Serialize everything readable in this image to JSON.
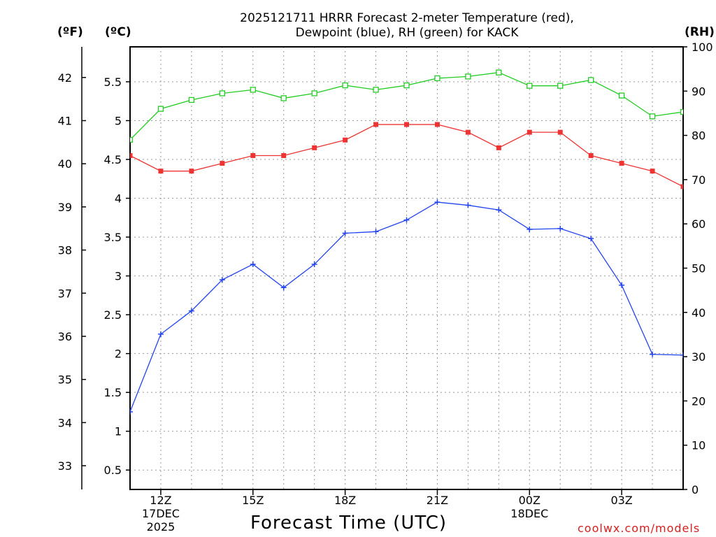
{
  "chart_data": {
    "type": "line",
    "title_lines": [
      "2025121711 HRRR Forecast 2-meter Temperature (red),",
      "Dewpoint (blue), RH (green) for KACK"
    ],
    "xlabel": "Forecast Time (UTC)",
    "unit_labels": {
      "fahrenheit": "(ºF)",
      "celsius": "(ºC)",
      "rh": "(RH)"
    },
    "credit": "coolwx.com/models",
    "x_range": [
      11,
      29
    ],
    "x_ticks": [
      {
        "x": 12,
        "lines": [
          "12Z",
          "17DEC",
          "2025"
        ]
      },
      {
        "x": 15,
        "lines": [
          "15Z"
        ]
      },
      {
        "x": 18,
        "lines": [
          "18Z"
        ]
      },
      {
        "x": 21,
        "lines": [
          "21Z"
        ]
      },
      {
        "x": 24,
        "lines": [
          "00Z",
          "18DEC"
        ]
      },
      {
        "x": 27,
        "lines": [
          "03Z"
        ]
      }
    ],
    "x_grid": [
      12,
      13,
      14,
      15,
      16,
      17,
      18,
      19,
      20,
      21,
      22,
      23,
      24,
      25,
      26,
      27,
      28
    ],
    "celsius_axis": {
      "range": [
        0.25,
        5.95
      ],
      "ticks": [
        "0.5",
        "1",
        "1.5",
        "2",
        "2.5",
        "3",
        "3.5",
        "4",
        "4.5",
        "5",
        "5.5"
      ]
    },
    "fahrenheit_axis": {
      "range": [
        32.45,
        42.71
      ],
      "ticks": [
        "33",
        "34",
        "35",
        "36",
        "37",
        "38",
        "39",
        "40",
        "41",
        "42"
      ]
    },
    "rh_axis": {
      "range": [
        0,
        100
      ],
      "ticks": [
        "0",
        "10",
        "20",
        "30",
        "40",
        "50",
        "60",
        "70",
        "80",
        "90",
        "100"
      ]
    },
    "series": [
      {
        "name": "Temperature",
        "axis": "celsius",
        "color": "#ee3333",
        "marker": "filled-square",
        "x": [
          11,
          12,
          13,
          14,
          15,
          16,
          17,
          18,
          19,
          20,
          21,
          22,
          23,
          24,
          25,
          26,
          27,
          28,
          29
        ],
        "values": [
          4.55,
          4.35,
          4.35,
          4.45,
          4.55,
          4.55,
          4.65,
          4.75,
          4.95,
          4.95,
          4.95,
          4.85,
          4.65,
          4.85,
          4.85,
          4.55,
          4.45,
          4.35,
          4.15
        ]
      },
      {
        "name": "Dewpoint",
        "axis": "celsius",
        "color": "#2244ee",
        "marker": "plus",
        "x": [
          11,
          12,
          13,
          14,
          15,
          16,
          17,
          18,
          19,
          20,
          21,
          22,
          23,
          24,
          25,
          26,
          27,
          28,
          29
        ],
        "values": [
          1.25,
          2.25,
          2.55,
          2.95,
          3.15,
          2.85,
          3.15,
          3.55,
          3.57,
          3.72,
          3.95,
          3.91,
          3.85,
          3.6,
          3.61,
          3.48,
          2.88,
          1.99,
          1.98
        ]
      },
      {
        "name": "RH",
        "axis": "rh",
        "color": "#22cc22",
        "marker": "open-square",
        "x": [
          11,
          12,
          13,
          14,
          15,
          16,
          17,
          18,
          19,
          20,
          21,
          22,
          23,
          24,
          25,
          26,
          27,
          28,
          29
        ],
        "values": [
          79,
          86,
          88,
          89.5,
          90.3,
          88.4,
          89.5,
          91.3,
          90.3,
          91.3,
          92.9,
          93.3,
          94.2,
          91.2,
          91.2,
          92.5,
          89.0,
          84.3,
          85.3
        ]
      }
    ]
  }
}
